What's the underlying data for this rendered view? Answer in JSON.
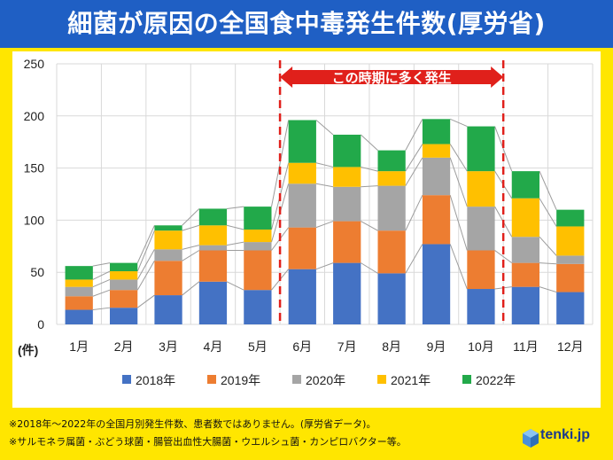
{
  "title": "細菌が原因の全国食中毒発生件数(厚労省)",
  "callout": "この時期に多く発生",
  "unit_label": "(件)",
  "notes": [
    "※2018年～2022年の全国月別発生件数、患者数ではありません。(厚労省データ)。",
    "※サルモネラ属菌・ぶどう球菌・腸管出血性大腸菌・ウエルシュ菌・カンピロバクター等。"
  ],
  "brand": "tenki.jp",
  "chart_data": {
    "type": "bar",
    "stacked": true,
    "categories": [
      "1月",
      "2月",
      "3月",
      "4月",
      "5月",
      "6月",
      "7月",
      "8月",
      "9月",
      "10月",
      "11月",
      "12月"
    ],
    "yticks": [
      0,
      50,
      100,
      150,
      200,
      250
    ],
    "ylim": [
      0,
      250
    ],
    "grid": true,
    "legend_position": "bottom",
    "highlight_range": [
      "6月",
      "10月"
    ],
    "series": [
      {
        "name": "2018年",
        "color": "#4472C4",
        "values": [
          14,
          16,
          28,
          41,
          33,
          53,
          59,
          49,
          77,
          34,
          36,
          31
        ]
      },
      {
        "name": "2019年",
        "color": "#ED7D31",
        "values": [
          13,
          17,
          33,
          30,
          38,
          40,
          40,
          41,
          47,
          37,
          23,
          27
        ]
      },
      {
        "name": "2020年",
        "color": "#A5A5A5",
        "values": [
          9,
          10,
          11,
          5,
          8,
          42,
          33,
          43,
          36,
          42,
          25,
          8
        ]
      },
      {
        "name": "2021年",
        "color": "#FFC000",
        "values": [
          7,
          8,
          18,
          19,
          12,
          20,
          19,
          14,
          13,
          34,
          37,
          28
        ]
      },
      {
        "name": "2022年",
        "color": "#22A94A",
        "values": [
          13,
          8,
          5,
          16,
          22,
          41,
          31,
          20,
          24,
          43,
          26,
          16
        ]
      }
    ]
  }
}
